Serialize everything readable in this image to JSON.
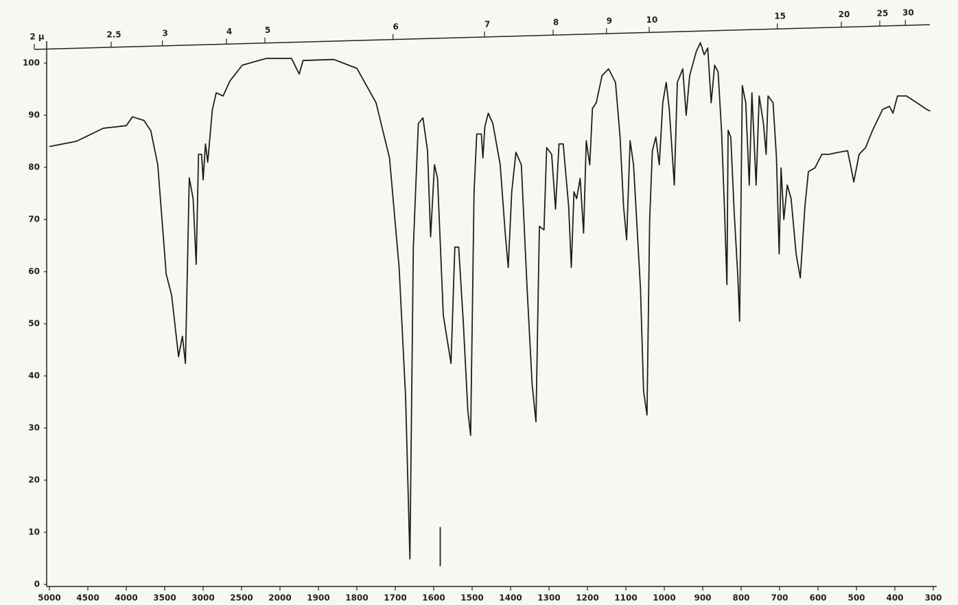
{
  "chart_data": {
    "type": "line",
    "x": [
      5000,
      4650,
      4300,
      4000,
      3920,
      3770,
      3680,
      3590,
      3480,
      3410,
      3320,
      3270,
      3230,
      3180,
      3130,
      3090,
      3060,
      3020,
      3000,
      2970,
      2940,
      2880,
      2830,
      2740,
      2650,
      2490,
      2180,
      1970,
      1950,
      1940,
      1860,
      1800,
      1750,
      1715,
      1690,
      1673,
      1662,
      1653,
      1640,
      1628,
      1616,
      1608,
      1598,
      1590,
      1575,
      1555,
      1545,
      1535,
      1523,
      1511,
      1504,
      1495,
      1488,
      1476,
      1472,
      1467,
      1458,
      1446,
      1427,
      1414,
      1406,
      1397,
      1386,
      1372,
      1357,
      1344,
      1334,
      1325,
      1313,
      1306,
      1293,
      1283,
      1274,
      1263,
      1249,
      1242,
      1235,
      1228,
      1219,
      1210,
      1203,
      1194,
      1187,
      1177,
      1162,
      1145,
      1127,
      1115,
      1106,
      1098,
      1089,
      1080,
      1062,
      1054,
      1045,
      1038,
      1031,
      1022,
      1013,
      1004,
      995,
      987,
      974,
      966,
      952,
      943,
      934,
      917,
      906,
      896,
      887,
      878,
      869,
      860,
      851,
      843,
      837,
      834,
      827,
      818,
      809,
      804,
      797,
      788,
      779,
      772,
      761,
      753,
      742,
      735,
      730,
      717,
      708,
      701,
      696,
      689,
      680,
      670,
      657,
      646,
      634,
      625,
      608,
      590,
      572,
      546,
      523,
      514,
      507,
      493,
      476,
      458,
      432,
      414,
      405,
      393,
      370,
      343,
      317,
      308,
      1583,
      1583,
      1583
    ],
    "series": [
      {
        "color": "#1e1e1e",
        "values": [
          84,
          85,
          87.5,
          88,
          89.7,
          89,
          87,
          80.5,
          59.5,
          55.5,
          43.7,
          47.6,
          42.4,
          78,
          74,
          61.4,
          82.5,
          82.5,
          77.6,
          84.5,
          81,
          91,
          94.3,
          93.7,
          96.6,
          99.6,
          100.9,
          100.9,
          97.9,
          100.5,
          100.7,
          99,
          92.4,
          81.8,
          60.8,
          35.8,
          4.9,
          64.7,
          88.4,
          89.5,
          83.2,
          66.7,
          80.5,
          77.9,
          51.6,
          42.4,
          64.7,
          64.7,
          50.3,
          33.2,
          28.6,
          75.3,
          86.4,
          86.4,
          81.8,
          87.8,
          90.4,
          88.4,
          80.5,
          67.4,
          60.8,
          75.3,
          82.9,
          80.5,
          56.8,
          38.4,
          31.2,
          68.7,
          68,
          83.8,
          82.5,
          72,
          84.5,
          84.5,
          72.6,
          60.8,
          75.3,
          74,
          77.9,
          67.4,
          85.1,
          80.5,
          91.3,
          92.4,
          97.6,
          98.9,
          96.3,
          85.8,
          72.6,
          66.1,
          85.1,
          80.5,
          56.8,
          37.1,
          32.5,
          70,
          83.2,
          85.8,
          80.5,
          92.4,
          96.3,
          91.1,
          76.6,
          96.3,
          98.9,
          90,
          97.6,
          102.2,
          103.9,
          101.6,
          102.9,
          92.4,
          99.6,
          98.3,
          87.1,
          71.3,
          57.5,
          87.1,
          85.8,
          71.3,
          59.5,
          50.5,
          95.7,
          92.4,
          76.6,
          94.3,
          76.6,
          93.7,
          88.4,
          82.5,
          93.7,
          92.4,
          81.8,
          63.4,
          79.9,
          70,
          76.6,
          74,
          63.4,
          58.8,
          72.6,
          79.2,
          79.9,
          82.5,
          82.5,
          82.9,
          83.2,
          79.9,
          77.2,
          82.5,
          83.8,
          87.1,
          91.1,
          91.7,
          90.4,
          93.7,
          93.7,
          92.4,
          91.1,
          90.8,
          null,
          11,
          3.5
        ]
      }
    ],
    "xlim": [
      5000,
      300
    ],
    "xticks": [
      5000,
      4500,
      4000,
      3500,
      3000,
      2500,
      2000,
      1900,
      1800,
      1700,
      1600,
      1500,
      1400,
      1300,
      1200,
      1100,
      1000,
      900,
      800,
      700,
      600,
      500,
      400,
      300
    ],
    "x2ticks": [
      {
        "value": 2,
        "label": "2 μ"
      },
      2.5,
      3,
      4,
      5,
      6,
      7,
      8,
      9,
      10,
      15,
      20,
      25,
      30
    ],
    "ylim": [
      0,
      100
    ],
    "yticks": [
      0,
      10,
      20,
      30,
      40,
      50,
      60,
      70,
      80,
      90,
      100
    ]
  }
}
